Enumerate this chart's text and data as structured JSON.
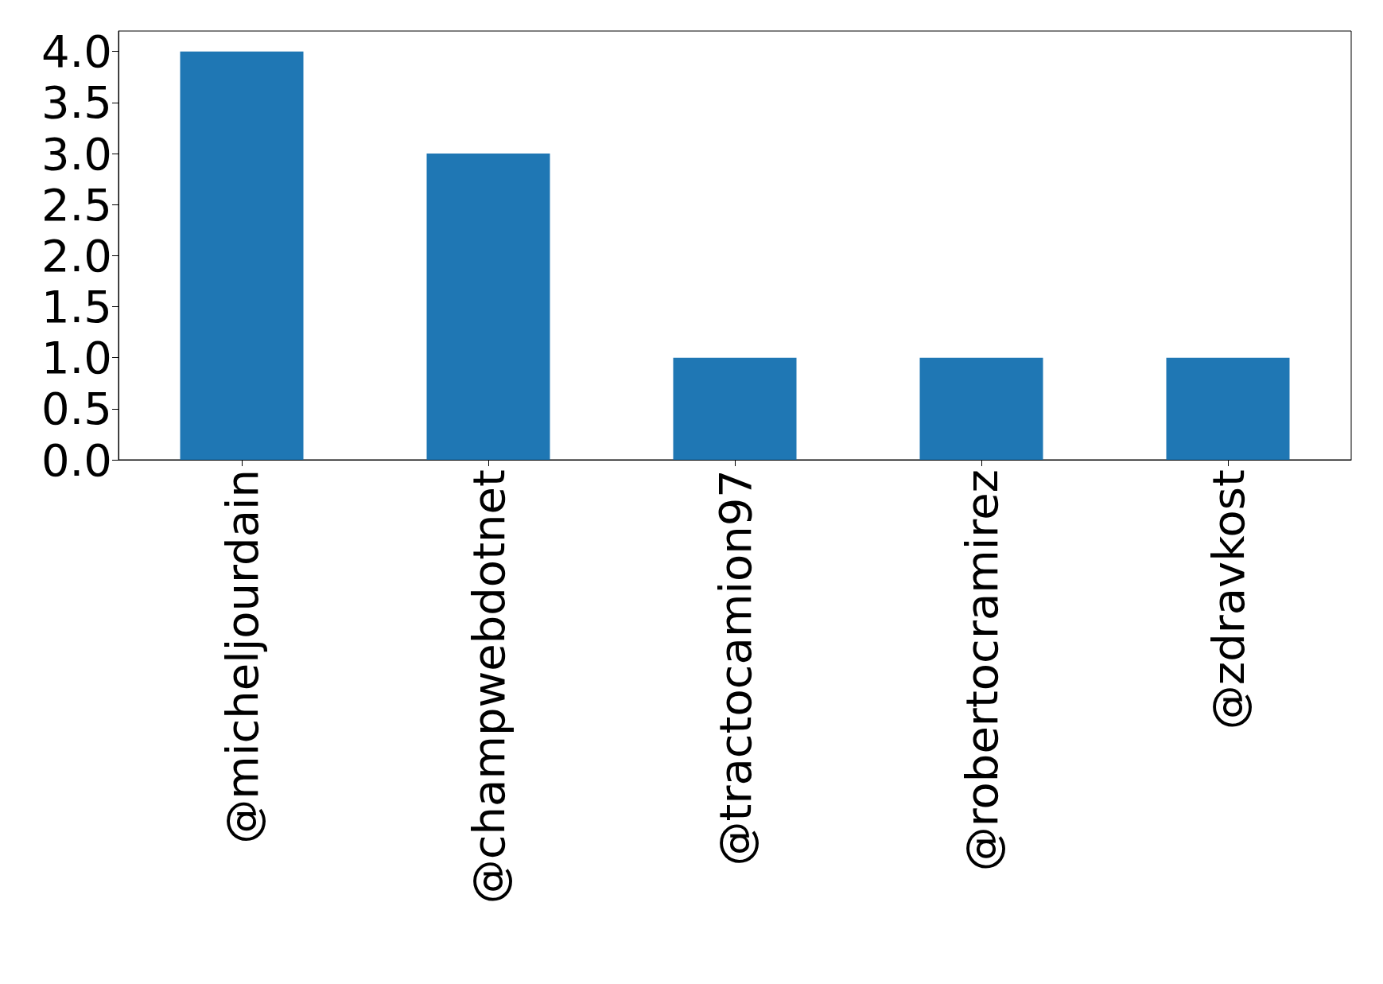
{
  "chart_data": {
    "type": "bar",
    "categories": [
      "@micheljourdain",
      "@champwebdotnet",
      "@tractocamion97",
      "@robertocramirez",
      "@zdravkost"
    ],
    "values": [
      4,
      3,
      1,
      1,
      1
    ],
    "color": "#1f77b4",
    "ylim": [
      0,
      4.2
    ],
    "yticks": [
      {
        "value": 0,
        "label": "0.0"
      },
      {
        "value": 0.5,
        "label": "0.5"
      },
      {
        "value": 1,
        "label": "1.0"
      },
      {
        "value": 1.5,
        "label": "1.5"
      },
      {
        "value": 2,
        "label": "2.0"
      },
      {
        "value": 2.5,
        "label": "2.5"
      },
      {
        "value": 3,
        "label": "3.0"
      },
      {
        "value": 3.5,
        "label": "3.5"
      },
      {
        "value": 4,
        "label": "4.0"
      }
    ]
  }
}
